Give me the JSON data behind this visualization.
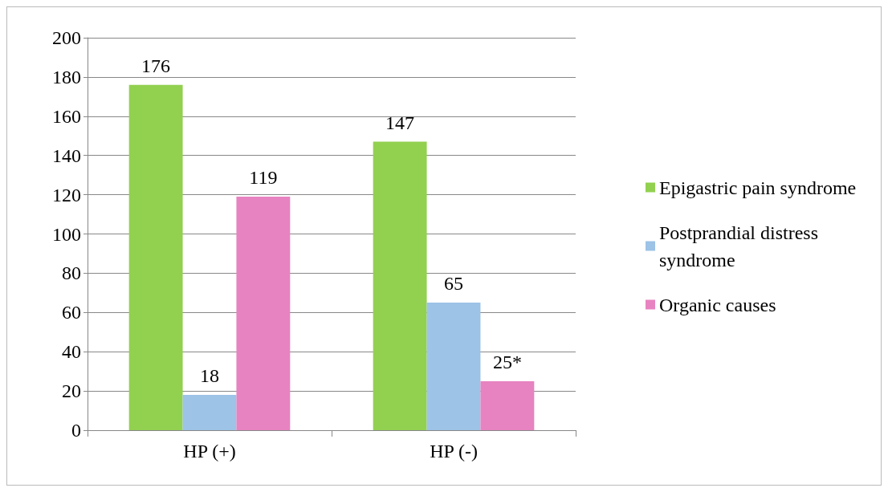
{
  "chart_data": {
    "type": "bar",
    "categories": [
      "HP (+)",
      "HP (-)"
    ],
    "series": [
      {
        "name": "Epigastric pain syndrome",
        "color": "#92d050",
        "values": [
          176,
          147
        ],
        "value_labels": [
          "176",
          "147"
        ]
      },
      {
        "name": "Postprandial distress syndrome",
        "color": "#9dc3e6",
        "values": [
          18,
          65
        ],
        "value_labels": [
          "18",
          "65"
        ]
      },
      {
        "name": "Organic causes",
        "color": "#e783c0",
        "values": [
          119,
          25
        ],
        "value_labels": [
          "119",
          "25*"
        ]
      }
    ],
    "ylim": [
      0,
      200
    ],
    "yticks": [
      0,
      20,
      40,
      60,
      80,
      100,
      120,
      140,
      160,
      180,
      200
    ],
    "grid": "y",
    "legend": "right"
  }
}
